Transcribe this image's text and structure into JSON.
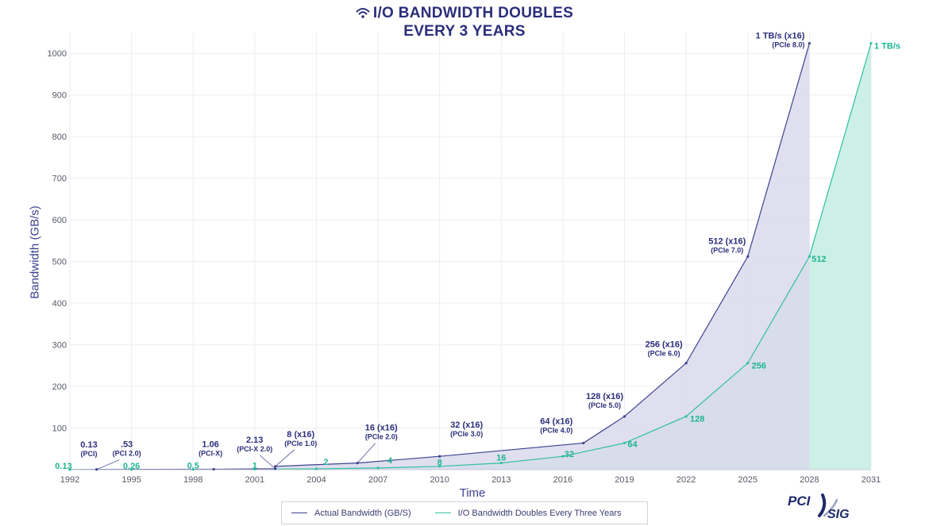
{
  "title": {
    "line1": "I/O BANDWIDTH DOUBLES",
    "line2": "EVERY 3 YEARS",
    "icon": "wifi-icon"
  },
  "axes": {
    "ylabel": "Bandwidth (GB/s)",
    "xlabel": "Time"
  },
  "legend": {
    "actual": "Actual Bandwidth (GB/S)",
    "doubles": "I/O Bandwidth Doubles Every Three Years"
  },
  "logo": {
    "pci": "PCI",
    "sig": "SIG"
  },
  "colors": {
    "title": "#2b2e7a",
    "actual_line": "#3d438f",
    "actual_fill": "#d9d9ec",
    "actual_label": "#2b2e7a",
    "doubles_line": "#2fbf9f",
    "doubles_fill": "#ccf0e5",
    "doubles_label": "#1fb592",
    "grid": "#ebedf2",
    "tick": "#555a66"
  },
  "chart_data": {
    "type": "area",
    "title": "I/O BANDWIDTH DOUBLES EVERY 3 YEARS",
    "xlabel": "Time",
    "ylabel": "Bandwidth (GB/s)",
    "xlim": [
      1992,
      2031
    ],
    "ylim": [
      0,
      1050
    ],
    "xticks": [
      1992,
      1995,
      1998,
      2001,
      2004,
      2007,
      2010,
      2013,
      2016,
      2019,
      2022,
      2025,
      2028,
      2031
    ],
    "yticks": [
      100,
      200,
      300,
      400,
      500,
      600,
      700,
      800,
      900,
      1000
    ],
    "grid": true,
    "legend_position": "bottom",
    "series": [
      {
        "name": "Actual Bandwidth (GB/S)",
        "points": [
          {
            "x": 1992,
            "y": 0.13,
            "label": "0.13",
            "sublabel": "(PCI)"
          },
          {
            "x": 1993.3,
            "y": 0.53,
            "label": ".53",
            "sublabel": "(PCI 2.0)"
          },
          {
            "x": 1999,
            "y": 1.06,
            "label": "1.06",
            "sublabel": "(PCI-X)"
          },
          {
            "x": 2002,
            "y": 2.13,
            "label": "2.13",
            "sublabel": "(PCI-X 2.0)"
          },
          {
            "x": 2002,
            "y": 8,
            "label": "8 (x16)",
            "sublabel": "(PCIe 1.0)"
          },
          {
            "x": 2006,
            "y": 16,
            "label": "16 (x16)",
            "sublabel": "(PCIe 2.0)"
          },
          {
            "x": 2010,
            "y": 32,
            "label": "32 (x16)",
            "sublabel": "(PCIe 3.0)"
          },
          {
            "x": 2017,
            "y": 64,
            "label": "64 (x16)",
            "sublabel": "(PCIe 4.0)"
          },
          {
            "x": 2019,
            "y": 128,
            "label": "128 (x16)",
            "sublabel": "(PCIe 5.0)"
          },
          {
            "x": 2022,
            "y": 256,
            "label": "256 (x16)",
            "sublabel": "(PCIe 6.0)"
          },
          {
            "x": 2025,
            "y": 512,
            "label": "512 (x16)",
            "sublabel": "(PCIe 7.0)"
          },
          {
            "x": 2028,
            "y": 1024,
            "label": "1 TB/s (x16)",
            "sublabel": "(PCIe 8.0)"
          }
        ]
      },
      {
        "name": "I/O Bandwidth Doubles Every Three Years",
        "points": [
          {
            "x": 1992,
            "y": 0.13,
            "label": "0.13"
          },
          {
            "x": 1995,
            "y": 0.26,
            "label": "0.26"
          },
          {
            "x": 1998,
            "y": 0.5,
            "label": "0.5"
          },
          {
            "x": 2001,
            "y": 1,
            "label": "1"
          },
          {
            "x": 2004,
            "y": 2,
            "label": "2"
          },
          {
            "x": 2007,
            "y": 4,
            "label": "4"
          },
          {
            "x": 2010,
            "y": 8,
            "label": "8"
          },
          {
            "x": 2013,
            "y": 16,
            "label": "16"
          },
          {
            "x": 2016,
            "y": 32,
            "label": "32"
          },
          {
            "x": 2019,
            "y": 64,
            "label": "64"
          },
          {
            "x": 2022,
            "y": 128,
            "label": "128"
          },
          {
            "x": 2025,
            "y": 256,
            "label": "256"
          },
          {
            "x": 2028,
            "y": 512,
            "label": "512"
          },
          {
            "x": 2031,
            "y": 1024,
            "label": "1 TB/s"
          }
        ]
      }
    ]
  }
}
